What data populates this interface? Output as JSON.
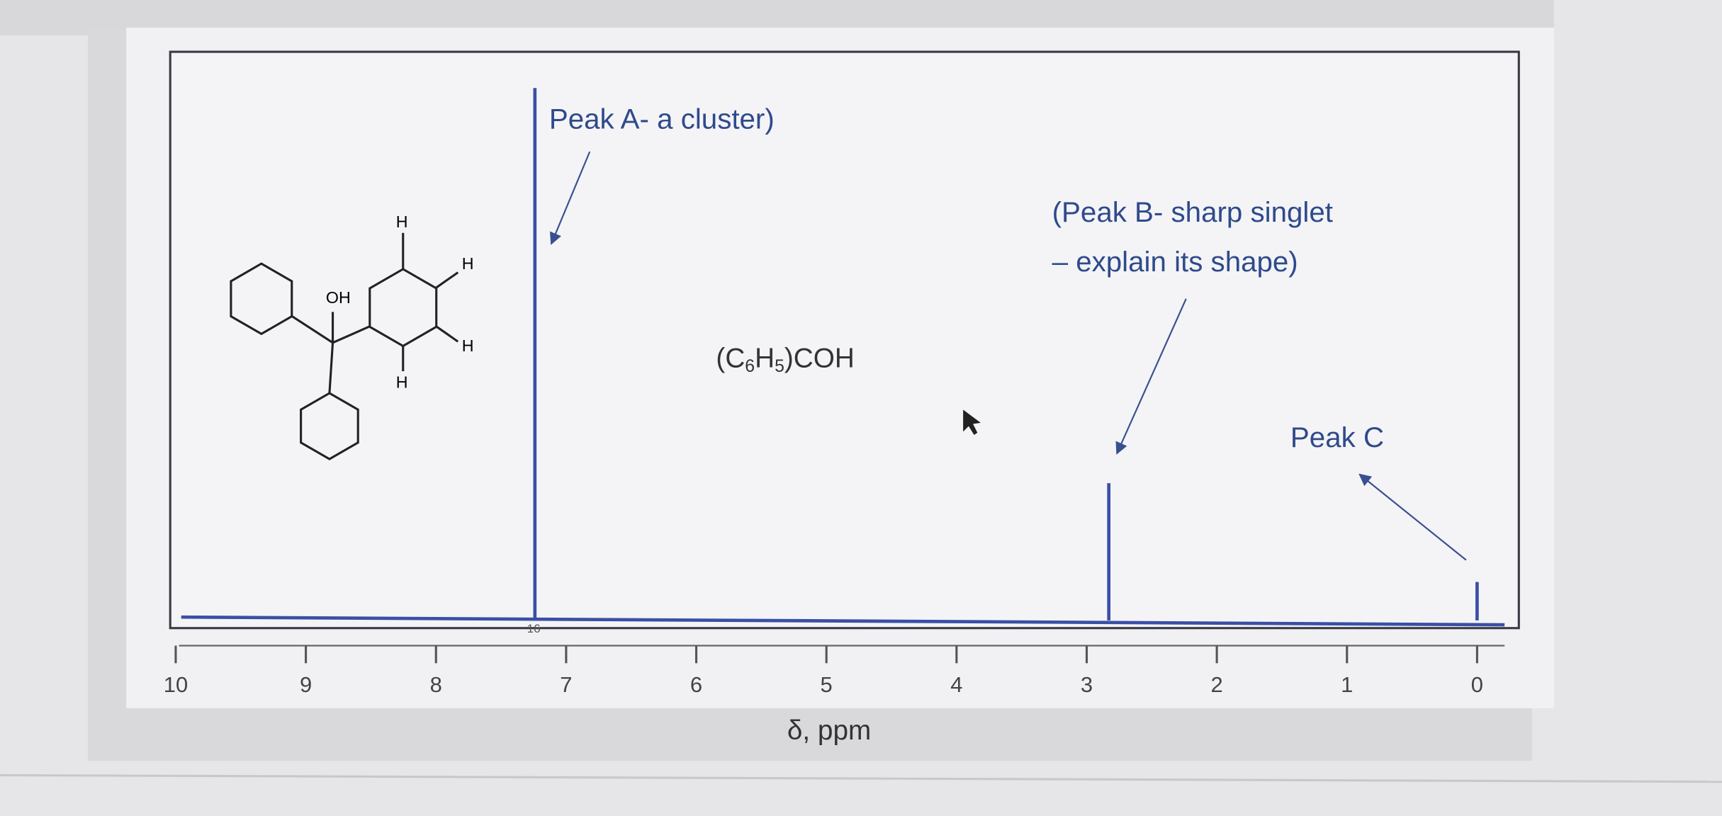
{
  "chart_data": {
    "type": "spectrum",
    "x": [
      7.24,
      2.83,
      0
    ],
    "values": [
      97,
      25,
      7
    ],
    "color": "#3a4fa6",
    "xlim": [
      10,
      0
    ],
    "ylim": [
      0,
      100
    ],
    "xticks": [
      10,
      9,
      8,
      7,
      6,
      5,
      4,
      3,
      2,
      1,
      0
    ],
    "xlabel": "δ, ppm",
    "integration_label": "16",
    "annotations": {
      "peak_a": "Peak A- a cluster)",
      "peak_b_line1": "(Peak B- sharp singlet",
      "peak_b_line2": "– explain its shape)",
      "peak_c": "Peak C"
    },
    "formula": [
      "(C",
      "6",
      "H",
      "5",
      ")COH"
    ],
    "molecule_labels": [
      "H",
      "H",
      "H",
      "H",
      "OH"
    ]
  }
}
